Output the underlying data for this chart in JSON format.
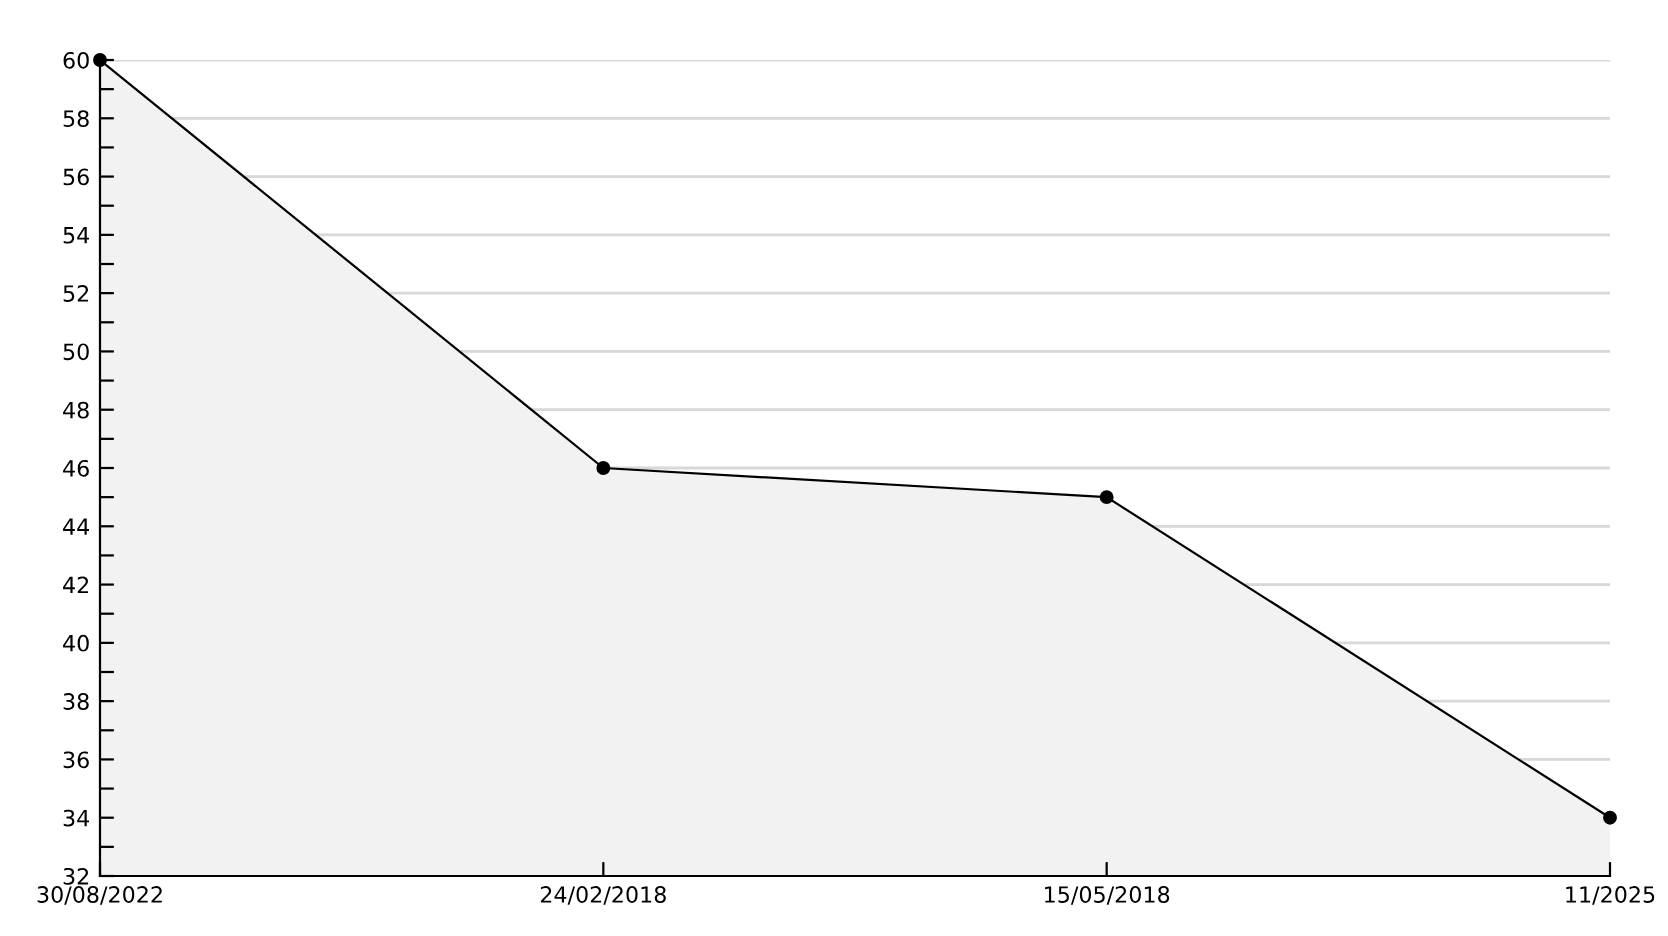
{
  "chart_data": {
    "type": "area",
    "categories": [
      "30/08/2022",
      "24/02/2018",
      "15/05/2018",
      "11/2025"
    ],
    "series": [
      {
        "color": "#f2f2f2",
        "values": [
          60,
          46,
          45,
          34
        ]
      }
    ],
    "ylim": [
      32,
      60
    ],
    "yticks": [
      32,
      {
        "value": 33,
        "label": null
      },
      34,
      {
        "value": 35,
        "label": null
      },
      36,
      {
        "value": 37,
        "label": null
      },
      38,
      {
        "value": 39,
        "label": null
      },
      40,
      {
        "value": 41,
        "label": null
      },
      42,
      {
        "value": 43,
        "label": null
      },
      44,
      {
        "value": 45,
        "label": null
      },
      46,
      {
        "value": 47,
        "label": null
      },
      48,
      {
        "value": 49,
        "label": null
      },
      50,
      {
        "value": 51,
        "label": null
      },
      52,
      {
        "value": 53,
        "label": null
      },
      54,
      {
        "value": 55,
        "label": null
      },
      56,
      {
        "value": 57,
        "label": null
      },
      58,
      {
        "value": 59,
        "label": null
      },
      60
    ],
    "grid": "y",
    "marker": "circle",
    "line_style": "solid",
    "legend": false
  }
}
